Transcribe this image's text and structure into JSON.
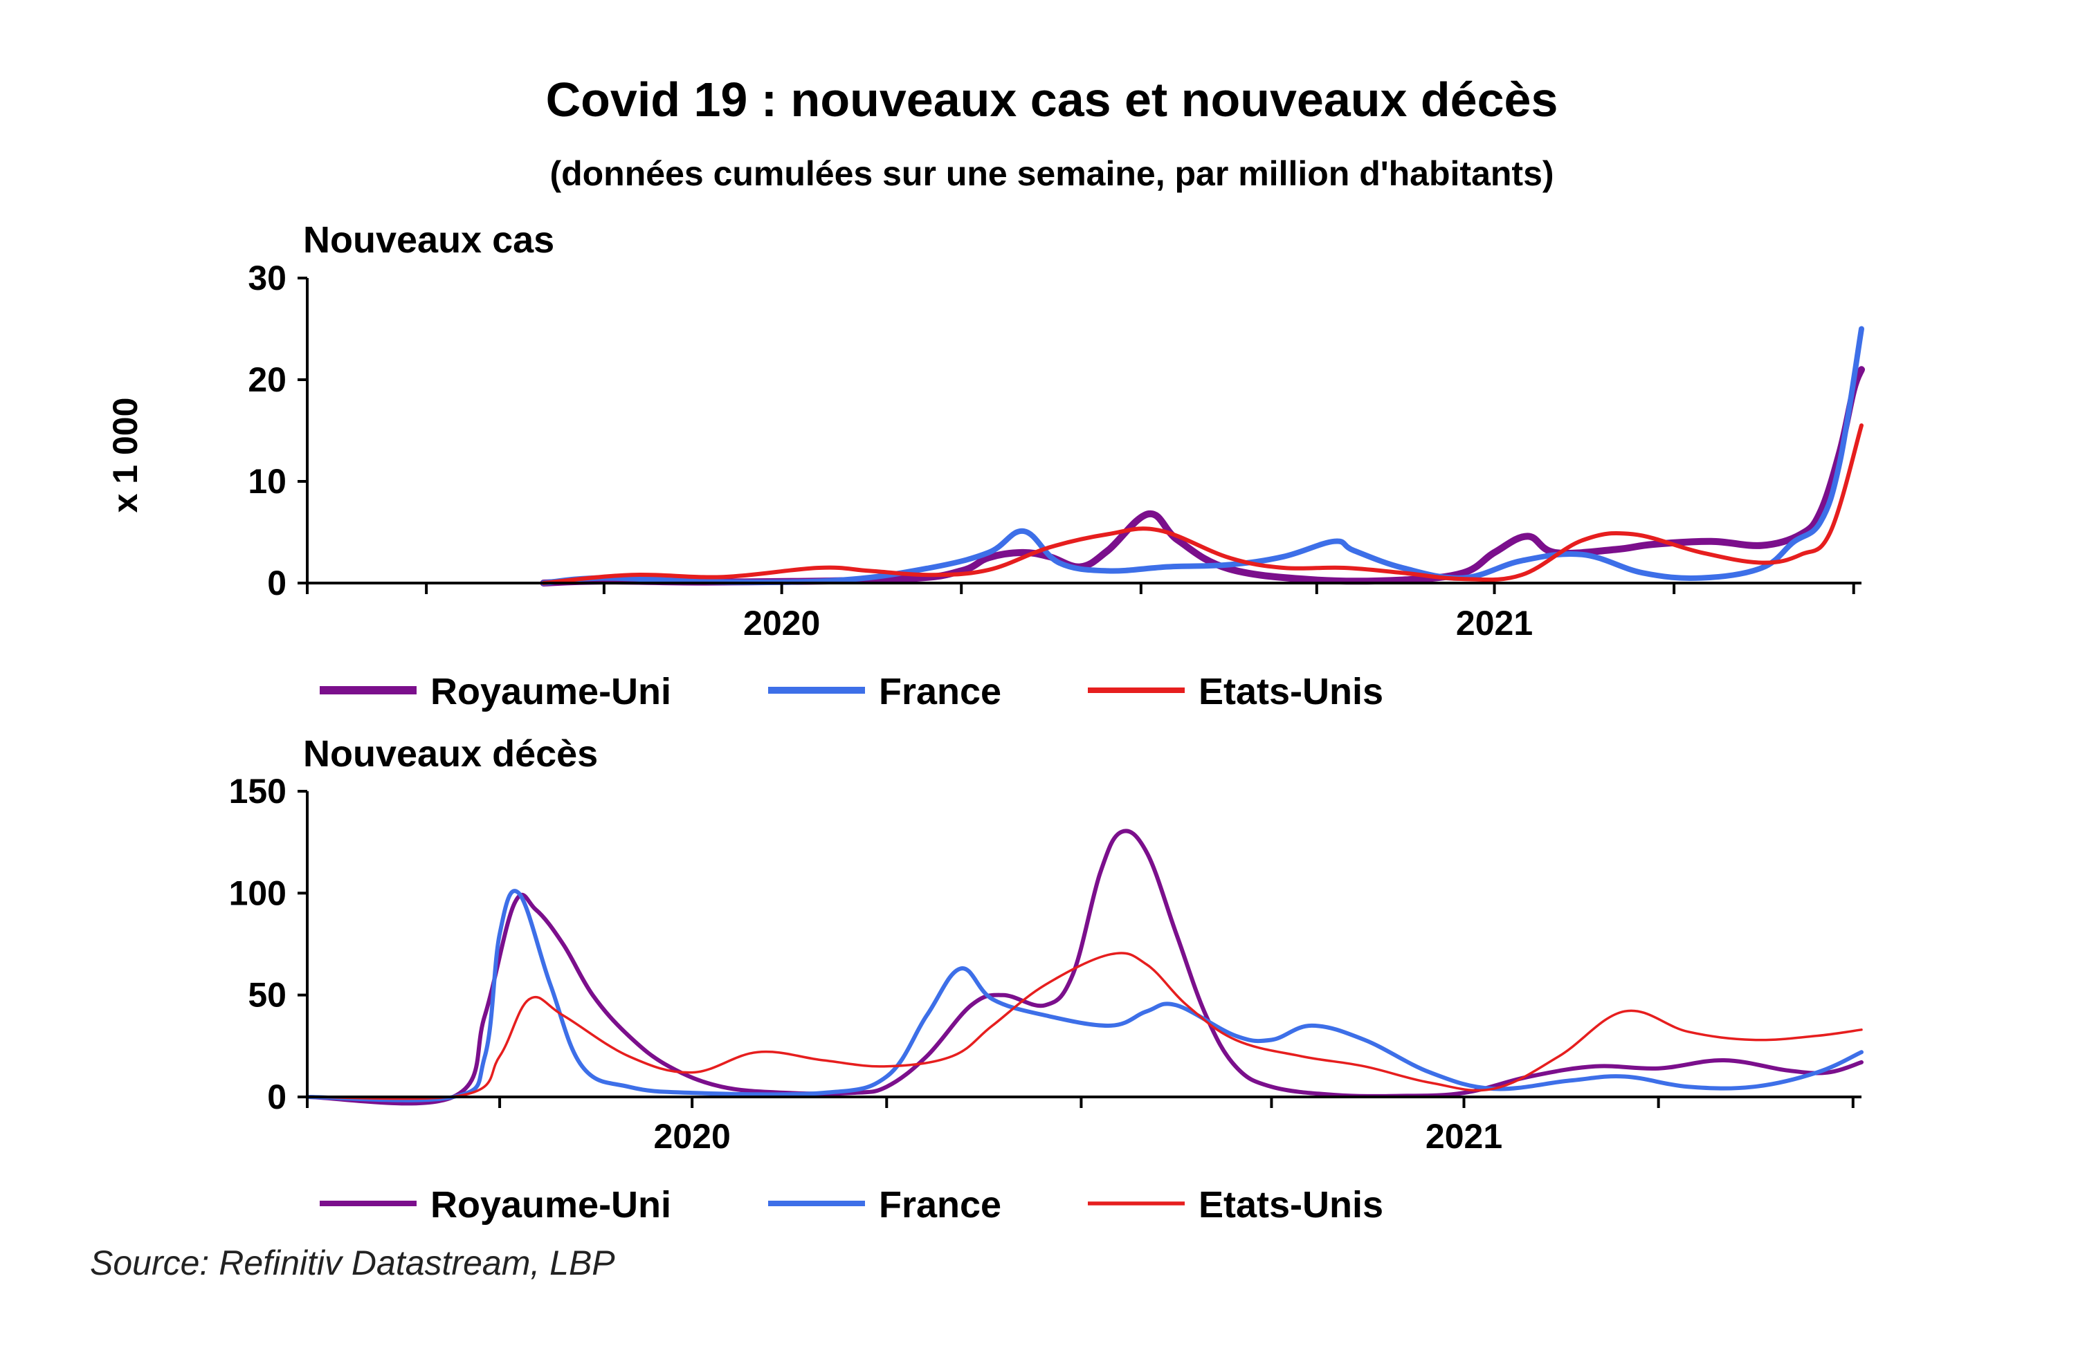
{
  "title": "Covid 19 : nouveaux cas et nouveaux décès",
  "subtitle": "(données cumulées sur une semaine, par million d'habitants)",
  "source": "Source: Refinitiv Datastream, LBP",
  "colors": {
    "Royaume-Uni": "#7b0f8c",
    "France": "#3d6fe8",
    "Etats-Unis": "#e61e1e"
  },
  "chart_data": [
    {
      "type": "line",
      "title": "Nouveaux cas",
      "ylabel": "x 1 000",
      "ylim": [
        0,
        30
      ],
      "yticks": [
        0,
        10,
        20,
        30
      ],
      "xlim": [
        "2019-11-01",
        "2022-01-05"
      ],
      "xtick_labels": [
        {
          "label": "2020",
          "date": "2020-07-01"
        },
        {
          "label": "2021",
          "date": "2021-07-01"
        }
      ],
      "xtick_marks": [
        "2019-11-01",
        "2020-01-01",
        "2020-04-01",
        "2020-07-01",
        "2020-10-01",
        "2021-01-01",
        "2021-04-01",
        "2021-07-01",
        "2021-10-01",
        "2022-01-01"
      ],
      "legend": [
        "Royaume-Uni",
        "France",
        "Etats-Unis"
      ],
      "series": [
        {
          "name": "Royaume-Uni",
          "x": [
            "2020-03-01",
            "2020-04-01",
            "2020-06-01",
            "2020-09-01",
            "2020-10-01",
            "2020-10-15",
            "2020-11-01",
            "2020-11-15",
            "2020-12-01",
            "2020-12-15",
            "2021-01-05",
            "2021-01-20",
            "2021-02-15",
            "2021-04-01",
            "2021-05-15",
            "2021-06-15",
            "2021-07-01",
            "2021-07-18",
            "2021-08-01",
            "2021-09-01",
            "2021-09-20",
            "2021-10-20",
            "2021-11-15",
            "2021-12-05",
            "2021-12-15",
            "2021-12-25",
            "2022-01-01",
            "2022-01-05"
          ],
          "y": [
            0,
            0.2,
            0.1,
            0.4,
            1.2,
            2.5,
            3.0,
            2.6,
            1.6,
            3.2,
            6.8,
            4.2,
            1.4,
            0.3,
            0.3,
            1.0,
            3.0,
            4.6,
            3.0,
            3.3,
            3.8,
            4.1,
            3.7,
            4.8,
            7.0,
            13.0,
            19.0,
            21.0
          ]
        },
        {
          "name": "France",
          "x": [
            "2020-03-01",
            "2020-04-01",
            "2020-06-01",
            "2020-08-01",
            "2020-09-15",
            "2020-10-15",
            "2020-11-02",
            "2020-11-20",
            "2020-12-15",
            "2021-01-15",
            "2021-02-15",
            "2021-03-15",
            "2021-04-10",
            "2021-04-20",
            "2021-05-15",
            "2021-06-15",
            "2021-07-15",
            "2021-08-15",
            "2021-09-15",
            "2021-10-15",
            "2021-11-15",
            "2021-12-01",
            "2021-12-15",
            "2021-12-25",
            "2022-01-05"
          ],
          "y": [
            0,
            0.5,
            0.1,
            0.3,
            1.5,
            3.0,
            5.1,
            2.0,
            1.2,
            1.6,
            1.8,
            2.6,
            4.1,
            3.2,
            1.5,
            0.5,
            2.2,
            2.8,
            1.0,
            0.5,
            1.5,
            4.0,
            6.0,
            12.0,
            25.0
          ]
        },
        {
          "name": "Etats-Unis",
          "x": [
            "2020-03-01",
            "2020-04-15",
            "2020-06-01",
            "2020-07-20",
            "2020-08-15",
            "2020-09-15",
            "2020-10-15",
            "2020-11-15",
            "2020-12-15",
            "2021-01-10",
            "2021-02-15",
            "2021-03-15",
            "2021-04-15",
            "2021-05-15",
            "2021-06-15",
            "2021-07-15",
            "2021-08-15",
            "2021-09-10",
            "2021-10-15",
            "2021-11-15",
            "2021-12-05",
            "2021-12-20",
            "2022-01-05"
          ],
          "y": [
            0,
            0.8,
            0.6,
            1.5,
            1.2,
            0.8,
            1.3,
            3.5,
            4.8,
            5.2,
            2.5,
            1.5,
            1.5,
            1.0,
            0.4,
            0.8,
            4.2,
            4.8,
            3.0,
            2.0,
            2.8,
            5.0,
            15.5
          ]
        }
      ]
    },
    {
      "type": "line",
      "title": "Nouveaux décès",
      "ylim": [
        0,
        150
      ],
      "yticks": [
        0,
        50,
        100,
        150
      ],
      "xlim": [
        "2020-01-01",
        "2022-01-05"
      ],
      "xtick_labels": [
        {
          "label": "2020",
          "date": "2020-07-01"
        },
        {
          "label": "2021",
          "date": "2021-07-01"
        }
      ],
      "xtick_marks": [
        "2020-01-01",
        "2020-04-01",
        "2020-07-01",
        "2020-10-01",
        "2021-01-01",
        "2021-04-01",
        "2021-07-01",
        "2021-10-01",
        "2022-01-01"
      ],
      "legend": [
        "Royaume-Uni",
        "France",
        "Etats-Unis"
      ],
      "series": [
        {
          "name": "Royaume-Uni",
          "x": [
            "2020-01-01",
            "2020-03-10",
            "2020-03-25",
            "2020-04-08",
            "2020-04-18",
            "2020-05-01",
            "2020-05-15",
            "2020-06-01",
            "2020-06-20",
            "2020-07-15",
            "2020-08-15",
            "2020-09-15",
            "2020-10-01",
            "2020-10-20",
            "2020-11-10",
            "2020-11-25",
            "2020-12-15",
            "2020-12-28",
            "2021-01-10",
            "2021-01-20",
            "2021-02-01",
            "2021-02-15",
            "2021-03-01",
            "2021-03-15",
            "2021-04-01",
            "2021-05-01",
            "2021-06-01",
            "2021-07-01",
            "2021-08-01",
            "2021-09-01",
            "2021-10-01",
            "2021-11-01",
            "2021-12-01",
            "2021-12-20",
            "2022-01-05"
          ],
          "y": [
            0,
            0,
            40,
            95,
            92,
            75,
            50,
            30,
            15,
            5,
            2,
            2,
            5,
            20,
            45,
            50,
            45,
            60,
            110,
            130,
            120,
            80,
            40,
            15,
            5,
            1,
            0.5,
            2,
            10,
            15,
            14,
            18,
            13,
            12,
            17
          ]
        },
        {
          "name": "France",
          "x": [
            "2020-01-01",
            "2020-03-10",
            "2020-03-25",
            "2020-04-01",
            "2020-04-10",
            "2020-04-25",
            "2020-05-10",
            "2020-06-01",
            "2020-07-01",
            "2020-09-01",
            "2020-10-01",
            "2020-10-20",
            "2020-11-05",
            "2020-11-20",
            "2020-12-15",
            "2021-01-15",
            "2021-02-01",
            "2021-02-15",
            "2021-03-15",
            "2021-04-01",
            "2021-04-20",
            "2021-05-15",
            "2021-06-15",
            "2021-07-15",
            "2021-08-20",
            "2021-09-15",
            "2021-10-15",
            "2021-11-15",
            "2021-12-15",
            "2022-01-05"
          ],
          "y": [
            0,
            0,
            20,
            80,
            100,
            55,
            15,
            5,
            2,
            2,
            10,
            40,
            63,
            48,
            40,
            35,
            42,
            45,
            30,
            28,
            35,
            28,
            12,
            4,
            8,
            10,
            5,
            5,
            12,
            22
          ]
        },
        {
          "name": "Etats-Unis",
          "x": [
            "2020-01-01",
            "2020-03-15",
            "2020-04-01",
            "2020-04-15",
            "2020-05-01",
            "2020-06-01",
            "2020-07-01",
            "2020-08-01",
            "2020-09-01",
            "2020-10-01",
            "2020-11-01",
            "2020-11-20",
            "2020-12-15",
            "2021-01-15",
            "2021-02-01",
            "2021-02-20",
            "2021-03-15",
            "2021-04-15",
            "2021-05-15",
            "2021-06-15",
            "2021-07-15",
            "2021-08-15",
            "2021-09-15",
            "2021-10-15",
            "2021-11-15",
            "2021-12-15",
            "2022-01-05"
          ],
          "y": [
            0,
            1,
            20,
            48,
            40,
            20,
            12,
            22,
            18,
            15,
            20,
            35,
            55,
            70,
            65,
            45,
            28,
            20,
            15,
            7,
            4,
            20,
            42,
            32,
            28,
            30,
            33
          ]
        }
      ]
    }
  ]
}
